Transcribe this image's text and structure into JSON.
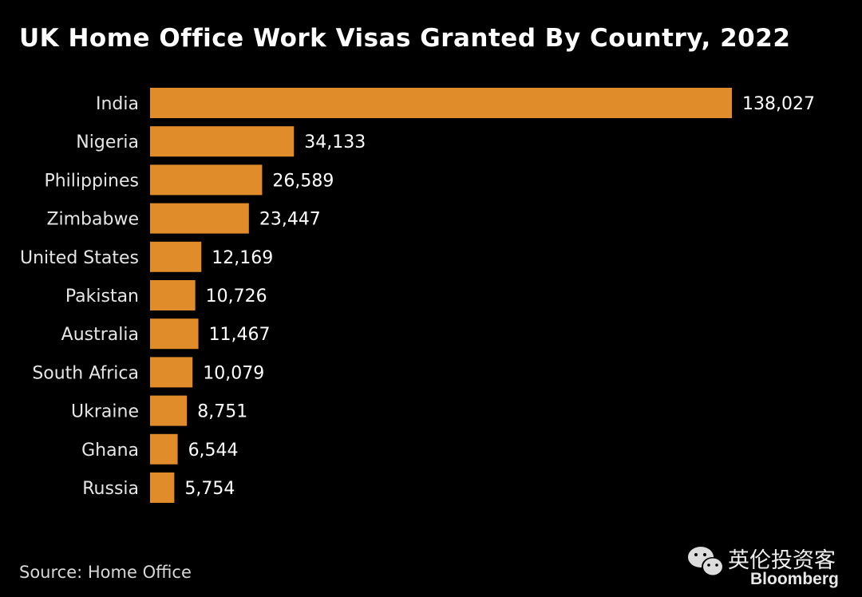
{
  "chart_data": {
    "type": "bar",
    "orientation": "horizontal",
    "title": "UK Home Office Work Visas Granted By Country, 2022",
    "categories": [
      "India",
      "Nigeria",
      "Philippines",
      "Zimbabwe",
      "United States",
      "Pakistan",
      "Australia",
      "South Africa",
      "Ukraine",
      "Ghana",
      "Russia"
    ],
    "values": [
      138027,
      34133,
      26589,
      23447,
      12169,
      10726,
      11467,
      10079,
      8751,
      6544,
      5754
    ],
    "data_labels": [
      "138,027",
      "34,133",
      "26,589",
      "23,447",
      "12,169",
      "10,726",
      "11,467",
      "10,079",
      "8,751",
      "6,544",
      "5,754"
    ],
    "xlim": [
      0,
      138027
    ],
    "grid": false,
    "bar_color": "#E08C2A"
  },
  "source": "Source: Home Office",
  "watermark": {
    "text": "英伦投资客",
    "brand": "Bloomberg",
    "icon": "wechat-icon"
  }
}
